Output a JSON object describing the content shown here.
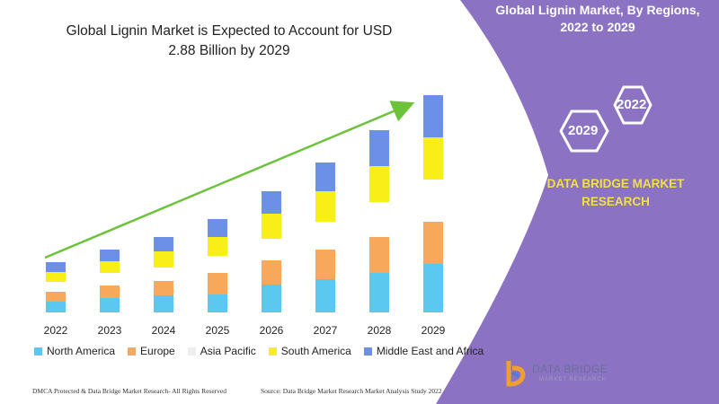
{
  "chart_data": {
    "type": "bar",
    "stacked": true,
    "title": "Global Lignin Market is Expected to Account for USD 2.88 Billion by 2029",
    "categories": [
      "2022",
      "2023",
      "2024",
      "2025",
      "2026",
      "2027",
      "2028",
      "2029"
    ],
    "series": [
      {
        "name": "North America",
        "color": "#5bc8f0",
        "values": [
          12,
          16,
          19,
          20,
          31,
          37,
          44,
          54
        ]
      },
      {
        "name": "Europe",
        "color": "#f8a85a",
        "values": [
          11,
          14,
          16,
          24,
          27,
          33,
          40,
          47
        ]
      },
      {
        "name": "Asia Pacific",
        "color": "#ffffff",
        "values": [
          11,
          14,
          15,
          19,
          24,
          31,
          39,
          47
        ]
      },
      {
        "name": "South America",
        "color": "#f8ef18",
        "values": [
          11,
          13,
          18,
          21,
          28,
          34,
          40,
          47
        ]
      },
      {
        "name": "Middle East and Africa",
        "color": "#6b90e6",
        "values": [
          11,
          13,
          16,
          20,
          25,
          32,
          40,
          47
        ]
      }
    ],
    "legend_position": "bottom",
    "grid": false
  },
  "panel": {
    "title_line1": "Global Lignin Market, By Regions,",
    "title_line2": "2022 to 2029",
    "hex_top": "2022",
    "hex_bottom": "2029",
    "brand_line1": "DATA BRIDGE MARKET",
    "brand_line2": "RESEARCH",
    "bg_color": "#8b72c2"
  },
  "logo": {
    "name": "DATA BRIDGE",
    "tagline": "MARKET RESEARCH"
  },
  "footer": {
    "left": "DMCA Protected & Data Bridge Market Research- All Rights Reserved",
    "right": "Source: Data Bridge Market Research Market Analysis Study 2022"
  }
}
